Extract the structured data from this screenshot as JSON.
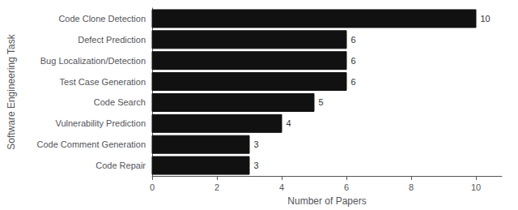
{
  "chart_data": {
    "type": "bar",
    "orientation": "horizontal",
    "categories": [
      "Code Repair",
      "Code Comment Generation",
      "Vulnerability Prediction",
      "Code Search",
      "Test Case Generation",
      "Bug Localization/Detection",
      "Defect Prediction",
      "Code Clone Detection"
    ],
    "values": [
      3,
      3,
      4,
      5,
      6,
      6,
      6,
      10
    ],
    "color": "#111111",
    "xlabel": "Number of Papers",
    "ylabel": "Software Engineering Task",
    "xlim": [
      0,
      10.8
    ],
    "xticks": [
      0,
      2,
      4,
      6,
      8,
      10
    ],
    "data_labels": true,
    "grid": false
  }
}
